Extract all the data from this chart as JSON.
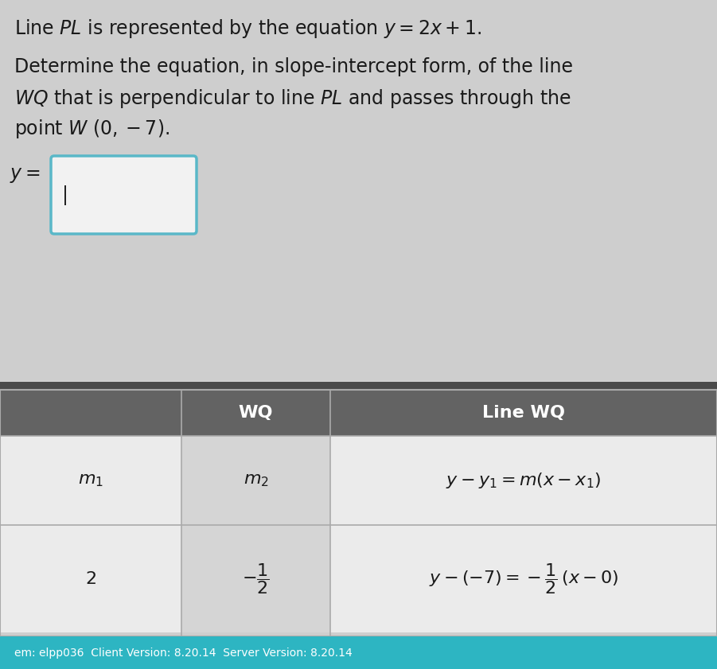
{
  "bg_color": "#cecece",
  "line1": "Line $\\it{PL}$ is represented by the equation $y = 2x + 1$.",
  "para1": "Determine the equation, in slope-intercept form, of the line",
  "para2": "$\\it{WQ}$ that is perpendicular to line $\\it{PL}$ and passes through the",
  "para3": "point $\\it{W}$ $(0, -7)$.",
  "ylabel": "$y =$",
  "col2_header": "WQ",
  "col3_header": "Line WQ",
  "row1_col1": "$m_1$",
  "row1_col2": "$m_2$",
  "row1_col3": "$y - y_1 = m(x - x_1)$",
  "row2_col1": "$2$",
  "row2_col2": "$-\\dfrac{1}{2}$",
  "row2_col3": "$y - (-7) = -\\dfrac{1}{2}\\,(x - 0)$",
  "footer_text": "em: elpp036  Client Version: 8.20.14  Server Version: 8.20.14",
  "footer_bg": "#2db5c2",
  "table_header_bg": "#636363",
  "text_color": "#1a1a1a",
  "white": "#ffffff",
  "cell_bg_light": "#ebebeb",
  "cell_bg_mid": "#d5d5d5",
  "grid_color": "#aaaaaa",
  "input_border": "#5ab8c8",
  "input_fill": "#f2f2f2",
  "cursor_color": "#222222",
  "partial_header_bg": "#4a4a4a"
}
